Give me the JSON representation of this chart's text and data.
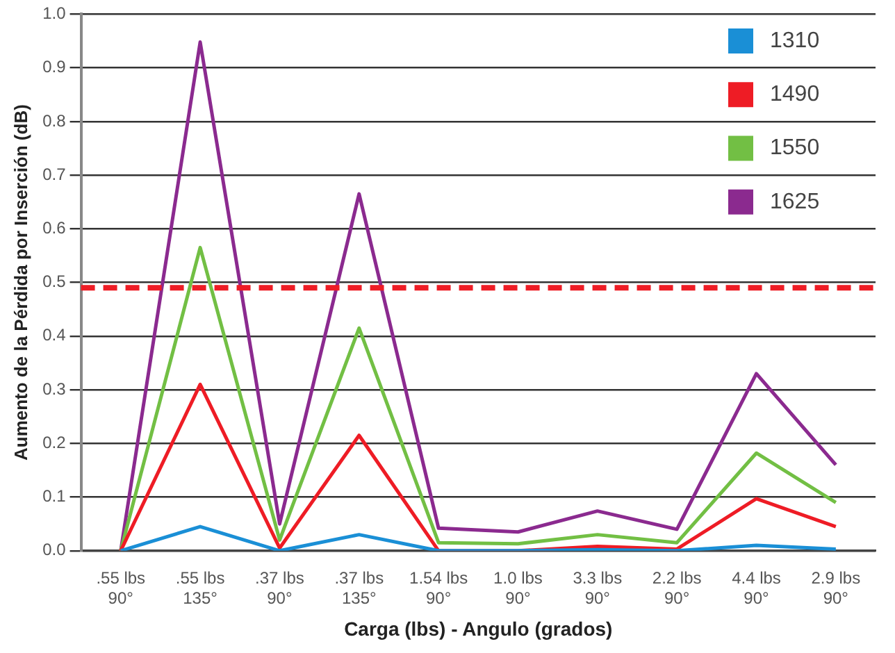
{
  "chart_data": {
    "type": "line",
    "xlabel": "Carga (lbs) - Angulo (grados)",
    "ylabel": "Aumento de la Pérdida por Inserción (dB)",
    "categories": [
      ".55 lbs\n90°",
      ".55 lbs\n135°",
      ".37 lbs\n90°",
      ".37 lbs\n135°",
      "1.54 lbs\n90°",
      "1.0 lbs\n90°",
      "3.3 lbs\n90°",
      "2.2 lbs\n90°",
      "4.4 lbs\n90°",
      "2.9 lbs\n90°"
    ],
    "series": [
      {
        "name": "1310",
        "color": "#1a8fd6",
        "values": [
          0,
          0.045,
          0,
          0.03,
          0,
          0,
          0.002,
          0,
          0.01,
          0.003
        ]
      },
      {
        "name": "1490",
        "color": "#ee1c25",
        "values": [
          0,
          0.31,
          0.005,
          0.215,
          0,
          0,
          0.008,
          0.003,
          0.097,
          0.045
        ]
      },
      {
        "name": "1550",
        "color": "#72bf44",
        "values": [
          0,
          0.565,
          0.02,
          0.415,
          0.015,
          0.013,
          0.03,
          0.015,
          0.182,
          0.09
        ]
      },
      {
        "name": "1625",
        "color": "#8b2a8f",
        "values": [
          0,
          0.948,
          0.05,
          0.665,
          0.042,
          0.035,
          0.074,
          0.04,
          0.33,
          0.16
        ]
      }
    ],
    "ylim": [
      0,
      1
    ],
    "yticks": [
      {
        "value": 0,
        "label": "0.0"
      },
      0.1,
      0.2,
      0.3,
      0.4,
      0.5,
      0.6,
      0.7,
      0.8,
      0.9,
      {
        "value": 1,
        "label": "1.0"
      }
    ],
    "ref_lines": [
      {
        "axis": "y",
        "value": 0.49,
        "color": "#ee1c25",
        "line_style": "dashed"
      }
    ],
    "grid": "y",
    "legend": "top right",
    "marker": "none",
    "line_style": "solid"
  }
}
